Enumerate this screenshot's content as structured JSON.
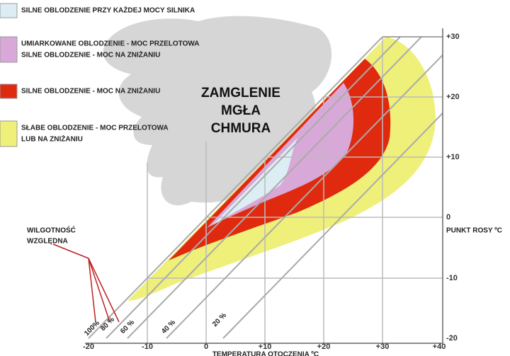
{
  "legend": [
    {
      "lines": [
        "SILNE OBLODZENIE PRZY KAŻDEJ MOCY SILNIKA"
      ],
      "color": "#dceef3"
    },
    {
      "lines": [
        "UMIARKOWANE OBLODZENIE - MOC PRZELOTOWA",
        "SILNE OBLODZENIE - MOC NA ZNIŻANIU"
      ],
      "color": "#d8a9d8"
    },
    {
      "lines": [
        "SILNE OBLODZENIE - MOC NA ZNIŻANIU"
      ],
      "color": "#e02a10"
    },
    {
      "lines": [
        "SŁABE OBLODZENIE - MOC PRZELOTOWA",
        "LUB NA ZNIŻANIU"
      ],
      "color": "#eef07a"
    }
  ],
  "fog_label": [
    "ZAMGLENIE",
    "MGŁA",
    "CHMURA"
  ],
  "humidity_label": [
    "WILGOTNOŚĆ",
    "WZGLĘDNA"
  ],
  "humidity_lines": [
    "100%",
    "80 %",
    "60 %",
    "40 %",
    "20 %"
  ],
  "x_axis": {
    "title": "TEMPERATURA OTOCZENIA ºC",
    "ticks": [
      "-20",
      "-10",
      "0",
      "+10",
      "+20",
      "+30",
      "+40"
    ]
  },
  "y_axis": {
    "title": "PUNKT ROSY ºC",
    "ticks": [
      "+30",
      "+20",
      "+10",
      "0",
      "-10",
      "-20"
    ]
  }
}
